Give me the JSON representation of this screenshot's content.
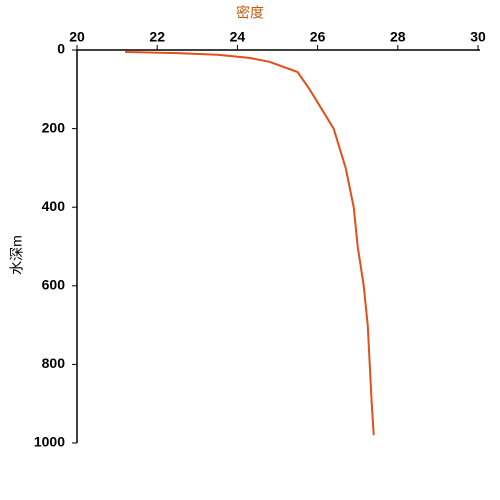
{
  "chart_data": {
    "type": "line",
    "x_axis_title": "密度",
    "y_axis_title": "水深m",
    "x": [
      21.2,
      22.5,
      23.5,
      24.3,
      24.8,
      25.5,
      25.8,
      26.1,
      26.4,
      26.7,
      26.9,
      27.0,
      27.15,
      27.25,
      27.3,
      27.35,
      27.4
    ],
    "values": [
      5,
      8,
      12,
      20,
      30,
      56,
      100,
      150,
      200,
      300,
      400,
      500,
      600,
      700,
      800,
      900,
      980
    ],
    "color": "#e0501c",
    "title_color": "#c55a11",
    "xlim": [
      20,
      30
    ],
    "xticks": [
      20,
      22,
      24,
      26,
      28,
      30
    ],
    "ylim": [
      0,
      1000
    ],
    "yticks": [
      0,
      200,
      400,
      600,
      800,
      1000
    ],
    "y_inverted": true,
    "x_axis_position": "top",
    "grid": false
  }
}
